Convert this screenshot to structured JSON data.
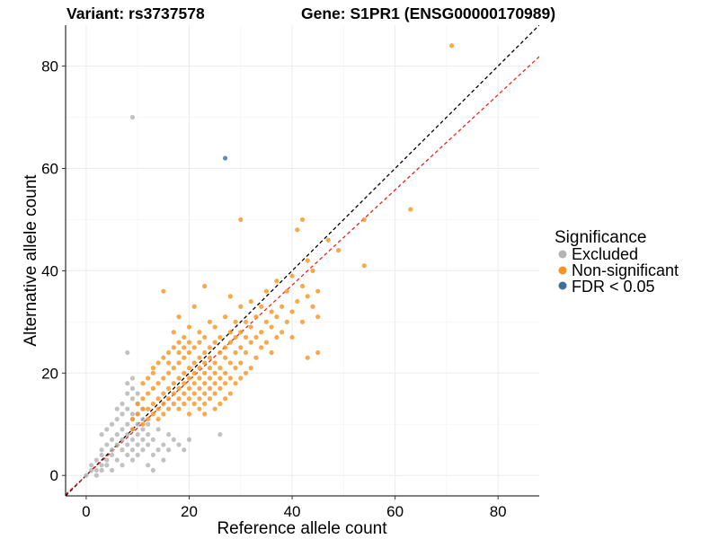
{
  "title_variant": "Variant: rs3737578",
  "title_gene": "Gene: S1PR1 (ENSG00000170989)",
  "colors": {
    "excluded": "#b3b3b3",
    "non_significant": "#f7941d",
    "fdr": "#3e6e9e",
    "identity_line": "#000000",
    "fit_line": "#e8261c"
  },
  "chart_data": {
    "type": "scatter",
    "xlabel": "Reference allele count",
    "ylabel": "Alternative allele count",
    "xlim": [
      -4,
      88
    ],
    "ylim": [
      -4,
      88
    ],
    "x_ticks": [
      0,
      20,
      40,
      60,
      80
    ],
    "y_ticks": [
      0,
      20,
      40,
      60,
      80
    ],
    "grid": true,
    "legend_position": "right",
    "legend_title": "Significance",
    "reference_lines": [
      {
        "name": "identity",
        "style": "dashed",
        "color": "#000000",
        "slope": 1.0,
        "intercept": 0
      },
      {
        "name": "fit",
        "style": "dashed",
        "color": "#e8261c",
        "slope": 0.93,
        "intercept": 0
      }
    ],
    "series": [
      {
        "name": "Excluded",
        "color": "#b3b3b3",
        "points": [
          [
            0,
            0
          ],
          [
            1,
            1
          ],
          [
            1,
            2
          ],
          [
            2,
            0
          ],
          [
            2,
            1
          ],
          [
            2,
            3
          ],
          [
            3,
            1
          ],
          [
            3,
            2
          ],
          [
            3,
            4
          ],
          [
            3,
            5
          ],
          [
            3,
            8
          ],
          [
            4,
            2
          ],
          [
            4,
            3
          ],
          [
            4,
            6
          ],
          [
            4,
            9
          ],
          [
            5,
            1
          ],
          [
            5,
            4
          ],
          [
            5,
            5
          ],
          [
            5,
            7
          ],
          [
            5,
            10
          ],
          [
            6,
            3
          ],
          [
            6,
            6
          ],
          [
            6,
            8
          ],
          [
            6,
            11
          ],
          [
            6,
            13
          ],
          [
            7,
            2
          ],
          [
            7,
            5
          ],
          [
            7,
            7
          ],
          [
            7,
            9
          ],
          [
            7,
            12
          ],
          [
            7,
            14
          ],
          [
            8,
            4
          ],
          [
            8,
            6
          ],
          [
            8,
            8
          ],
          [
            8,
            10
          ],
          [
            8,
            13
          ],
          [
            8,
            16
          ],
          [
            8,
            18
          ],
          [
            9,
            3
          ],
          [
            9,
            5
          ],
          [
            9,
            7
          ],
          [
            9,
            9
          ],
          [
            9,
            11
          ],
          [
            9,
            12
          ],
          [
            9,
            15
          ],
          [
            9,
            17
          ],
          [
            9,
            19
          ],
          [
            10,
            4
          ],
          [
            10,
            6
          ],
          [
            10,
            8
          ],
          [
            10,
            10
          ],
          [
            10,
            12
          ],
          [
            10,
            14
          ],
          [
            10,
            16
          ],
          [
            11,
            5
          ],
          [
            11,
            7
          ],
          [
            11,
            9
          ],
          [
            11,
            11
          ],
          [
            11,
            13
          ],
          [
            12,
            2
          ],
          [
            12,
            6
          ],
          [
            12,
            8
          ],
          [
            12,
            10
          ],
          [
            13,
            1
          ],
          [
            13,
            4
          ],
          [
            13,
            7
          ],
          [
            14,
            5
          ],
          [
            14,
            9
          ],
          [
            15,
            3
          ],
          [
            15,
            6
          ],
          [
            16,
            5
          ],
          [
            16,
            8
          ],
          [
            17,
            7
          ],
          [
            18,
            6
          ],
          [
            19,
            5
          ],
          [
            20,
            7
          ],
          [
            26,
            8
          ],
          [
            8,
            24
          ],
          [
            9,
            70
          ]
        ]
      },
      {
        "name": "Non-significant",
        "color": "#f7941d",
        "points": [
          [
            9,
            9
          ],
          [
            9,
            11
          ],
          [
            10,
            12
          ],
          [
            10,
            14
          ],
          [
            11,
            10
          ],
          [
            11,
            13
          ],
          [
            11,
            15
          ],
          [
            11,
            18
          ],
          [
            12,
            11
          ],
          [
            12,
            13
          ],
          [
            12,
            16
          ],
          [
            12,
            19
          ],
          [
            13,
            12
          ],
          [
            13,
            14
          ],
          [
            13,
            17
          ],
          [
            13,
            20
          ],
          [
            13,
            21
          ],
          [
            14,
            11
          ],
          [
            14,
            13
          ],
          [
            14,
            15
          ],
          [
            14,
            18
          ],
          [
            14,
            22
          ],
          [
            15,
            12
          ],
          [
            15,
            14
          ],
          [
            15,
            16
          ],
          [
            15,
            19
          ],
          [
            15,
            23
          ],
          [
            15,
            36
          ],
          [
            16,
            13
          ],
          [
            16,
            15
          ],
          [
            16,
            17
          ],
          [
            16,
            20
          ],
          [
            16,
            22
          ],
          [
            16,
            24
          ],
          [
            17,
            14
          ],
          [
            17,
            16
          ],
          [
            17,
            18
          ],
          [
            17,
            21
          ],
          [
            17,
            25
          ],
          [
            17,
            28
          ],
          [
            18,
            13
          ],
          [
            18,
            15
          ],
          [
            18,
            17
          ],
          [
            18,
            19
          ],
          [
            18,
            22
          ],
          [
            18,
            24
          ],
          [
            18,
            26
          ],
          [
            18,
            31
          ],
          [
            19,
            14
          ],
          [
            19,
            16
          ],
          [
            19,
            18
          ],
          [
            19,
            20
          ],
          [
            19,
            23
          ],
          [
            19,
            25
          ],
          [
            19,
            27
          ],
          [
            20,
            12
          ],
          [
            20,
            15
          ],
          [
            20,
            17
          ],
          [
            20,
            19
          ],
          [
            20,
            21
          ],
          [
            20,
            24
          ],
          [
            20,
            26
          ],
          [
            20,
            29
          ],
          [
            21,
            14
          ],
          [
            21,
            16
          ],
          [
            21,
            18
          ],
          [
            21,
            20
          ],
          [
            21,
            22
          ],
          [
            21,
            25
          ],
          [
            21,
            33
          ],
          [
            22,
            13
          ],
          [
            22,
            15
          ],
          [
            22,
            17
          ],
          [
            22,
            19
          ],
          [
            22,
            21
          ],
          [
            22,
            23
          ],
          [
            22,
            26
          ],
          [
            22,
            28
          ],
          [
            23,
            12
          ],
          [
            23,
            14
          ],
          [
            23,
            16
          ],
          [
            23,
            18
          ],
          [
            23,
            20
          ],
          [
            23,
            22
          ],
          [
            23,
            24
          ],
          [
            23,
            27
          ],
          [
            23,
            37
          ],
          [
            24,
            15
          ],
          [
            24,
            17
          ],
          [
            24,
            19
          ],
          [
            24,
            21
          ],
          [
            24,
            23
          ],
          [
            24,
            25
          ],
          [
            24,
            30
          ],
          [
            25,
            13
          ],
          [
            25,
            16
          ],
          [
            25,
            18
          ],
          [
            25,
            20
          ],
          [
            25,
            22
          ],
          [
            25,
            26
          ],
          [
            25,
            29
          ],
          [
            26,
            14
          ],
          [
            26,
            17
          ],
          [
            26,
            19
          ],
          [
            26,
            21
          ],
          [
            26,
            24
          ],
          [
            26,
            27
          ],
          [
            27,
            15
          ],
          [
            27,
            18
          ],
          [
            27,
            20
          ],
          [
            27,
            23
          ],
          [
            27,
            25
          ],
          [
            27,
            31
          ],
          [
            28,
            16
          ],
          [
            28,
            19
          ],
          [
            28,
            22
          ],
          [
            28,
            26
          ],
          [
            28,
            28
          ],
          [
            28,
            35
          ],
          [
            29,
            18
          ],
          [
            29,
            21
          ],
          [
            29,
            24
          ],
          [
            29,
            27
          ],
          [
            29,
            30
          ],
          [
            30,
            19
          ],
          [
            30,
            22
          ],
          [
            30,
            25
          ],
          [
            30,
            28
          ],
          [
            30,
            33
          ],
          [
            30,
            50
          ],
          [
            31,
            20
          ],
          [
            31,
            24
          ],
          [
            31,
            27
          ],
          [
            31,
            30
          ],
          [
            32,
            21
          ],
          [
            32,
            26
          ],
          [
            32,
            29
          ],
          [
            32,
            34
          ],
          [
            33,
            23
          ],
          [
            33,
            27
          ],
          [
            33,
            31
          ],
          [
            34,
            25
          ],
          [
            34,
            28
          ],
          [
            34,
            33
          ],
          [
            35,
            26
          ],
          [
            35,
            30
          ],
          [
            35,
            36
          ],
          [
            36,
            24
          ],
          [
            36,
            29
          ],
          [
            36,
            32
          ],
          [
            37,
            27
          ],
          [
            37,
            31
          ],
          [
            37,
            38
          ],
          [
            38,
            28
          ],
          [
            38,
            33
          ],
          [
            39,
            30
          ],
          [
            39,
            36
          ],
          [
            40,
            27
          ],
          [
            40,
            32
          ],
          [
            40,
            39
          ],
          [
            41,
            34
          ],
          [
            41,
            48
          ],
          [
            42,
            30
          ],
          [
            42,
            37
          ],
          [
            43,
            23
          ],
          [
            43,
            35
          ],
          [
            43,
            42
          ],
          [
            44,
            33
          ],
          [
            44,
            40
          ],
          [
            45,
            24
          ],
          [
            45,
            31
          ],
          [
            45,
            36
          ],
          [
            42,
            50
          ],
          [
            47,
            46
          ],
          [
            49,
            44
          ],
          [
            54,
            41
          ],
          [
            54,
            50
          ],
          [
            63,
            52
          ],
          [
            71,
            84
          ]
        ]
      },
      {
        "name": "FDR < 0.05",
        "color": "#3e6e9e",
        "points": [
          [
            27,
            62
          ]
        ]
      }
    ]
  }
}
